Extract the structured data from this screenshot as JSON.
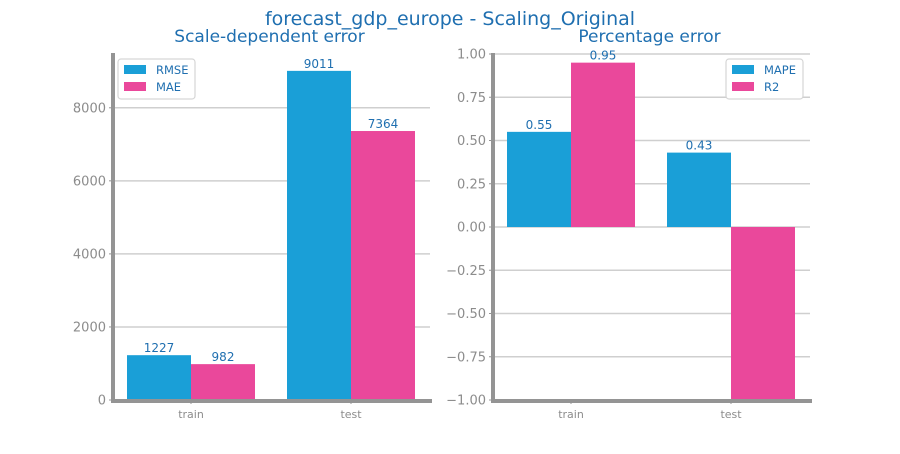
{
  "figure_title": "forecast_gdp_europe - Scaling_Original",
  "colors": {
    "title": "#1f6fb0",
    "label": "#1f6fb0",
    "tick": "#8c8c8c",
    "axis": "#949494",
    "grid": "#cfcfcf",
    "series_a": "#1a9fd7",
    "series_b": "#ea489b"
  },
  "chart_data": [
    {
      "type": "bar",
      "title": "Scale-dependent error",
      "categories": [
        "train",
        "test"
      ],
      "series": [
        {
          "name": "RMSE",
          "values": [
            1227,
            9011
          ],
          "labels": [
            "1227",
            "9011"
          ]
        },
        {
          "name": "MAE",
          "values": [
            982,
            7364
          ],
          "labels": [
            "982",
            "7364"
          ]
        }
      ],
      "ylim": [
        0,
        9500
      ],
      "yticks": [
        0,
        2000,
        4000,
        6000,
        8000
      ],
      "ytick_labels": [
        "0",
        "2000",
        "4000",
        "6000",
        "8000"
      ],
      "grid": true,
      "legend": "top-left"
    },
    {
      "type": "bar",
      "title": "Percentage error",
      "categories": [
        "train",
        "test"
      ],
      "series": [
        {
          "name": "MAPE",
          "values": [
            0.55,
            0.43
          ],
          "labels": [
            "0.55",
            "0.43"
          ]
        },
        {
          "name": "R2",
          "values": [
            0.95,
            -1.0
          ],
          "labels": [
            "0.95",
            ""
          ]
        }
      ],
      "ylim": [
        -1.0,
        1.0
      ],
      "yticks": [
        -1.0,
        -0.75,
        -0.5,
        -0.25,
        0.0,
        0.25,
        0.5,
        0.75,
        1.0
      ],
      "ytick_labels": [
        "−1.00",
        "−0.75",
        "−0.50",
        "−0.25",
        "0.00",
        "0.25",
        "0.50",
        "0.75",
        "1.00"
      ],
      "grid": true,
      "legend": "top-right"
    }
  ]
}
